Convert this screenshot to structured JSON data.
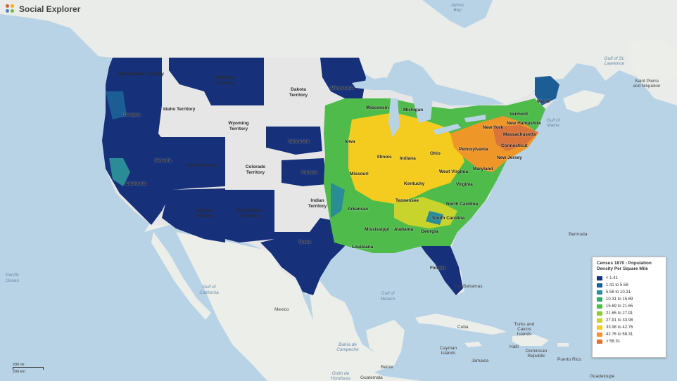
{
  "brand": {
    "name": "Social Explorer"
  },
  "legend": {
    "title": "Census 1870 - Population Density Per Square Mile",
    "items": [
      {
        "label": "< 1.41",
        "color": "#16307a"
      },
      {
        "label": "1.41 to 5.58",
        "color": "#1d5d96"
      },
      {
        "label": "5.58 to 10.31",
        "color": "#2a8c96"
      },
      {
        "label": "10.31 to 15.69",
        "color": "#31a865"
      },
      {
        "label": "15.69 to 21.65",
        "color": "#4fbb4a"
      },
      {
        "label": "21.65 to 27.91",
        "color": "#8fca3c"
      },
      {
        "label": "27.91 to 33.98",
        "color": "#c8d32c"
      },
      {
        "label": "33.98 to 42.76",
        "color": "#f3cc1f"
      },
      {
        "label": "42.76 to 58.31",
        "color": "#ee9728"
      },
      {
        "label": "> 58.31",
        "color": "#d9743a"
      }
    ]
  },
  "scale": {
    "mi": "200 mi",
    "km": "200 km"
  },
  "labels": {
    "territories": {
      "washington": "Washington Territory",
      "montana": "Montana Territory",
      "dakota": "Dakota Territory",
      "idaho": "Idaho Territory",
      "wyoming": "Wyoming Territory",
      "utah": "Utah Territory",
      "colorado": "Colorado Territory",
      "arizona": "Arizona Territory",
      "new_mexico": "New Mexico Territory",
      "indian": "Indian Territory"
    },
    "states": {
      "oregon": "Oregon",
      "nevada": "Nevada",
      "california": "California",
      "minnesota": "Minnesota",
      "wisconsin": "Wisconsin",
      "michigan": "Michigan",
      "nebraska": "Nebraska",
      "kansas": "Kansas",
      "iowa": "Iowa",
      "illinois": "Illinois",
      "indiana": "Indiana",
      "ohio": "Ohio",
      "missouri": "Missouri",
      "kentucky": "Kentucky",
      "tennessee": "Tennessee",
      "arkansas": "Arkansas",
      "texas": "Texas",
      "louisiana": "Louisiana",
      "mississippi": "Mississippi",
      "alabama": "Alabama",
      "georgia": "Georgia",
      "florida": "Florida",
      "south_carolina": "South Carolina",
      "north_carolina": "North Carolina",
      "virginia": "Virginia",
      "west_virginia": "West Virginia",
      "maryland": "Maryland",
      "pennsylvania": "Pennsylvania",
      "new_jersey": "New Jersey",
      "new_york": "New York",
      "connecticut": "Connecticut",
      "massachusetts": "Massachusetts",
      "vermont": "Vermont",
      "new_hampshire": "New Hampshire",
      "maine": "Maine"
    },
    "geo": {
      "pacific_ocean": "Pacific Ocean",
      "gulf_california": "Gulf of California",
      "gulf_mexico": "Gulf of Mexico",
      "mexico": "Mexico",
      "the_bahamas": "The Bahamas",
      "cuba": "Cuba",
      "turks_caicos": "Turks and Caicos Islands",
      "cayman": "Cayman Islands",
      "dominican": "Dominican Republic",
      "haiti": "Haiti",
      "jamaica": "Jamaica",
      "puerto_rico": "Puerto Rico",
      "guadeloupe": "Guadeloupe",
      "belize": "Belize",
      "guatemala": "Guatemala",
      "bermuda": "Bermuda",
      "gulf_st_lawrence": "Gulf of St. Lawrence",
      "saint_pierre": "Saint Pierre and Miquelon",
      "bay_campeche": "Bahía de Campeche",
      "gulf_maine": "Gulf of Maine",
      "james_bay": "James Bay",
      "golfo_honduras": "Golfo de Honduras"
    }
  }
}
